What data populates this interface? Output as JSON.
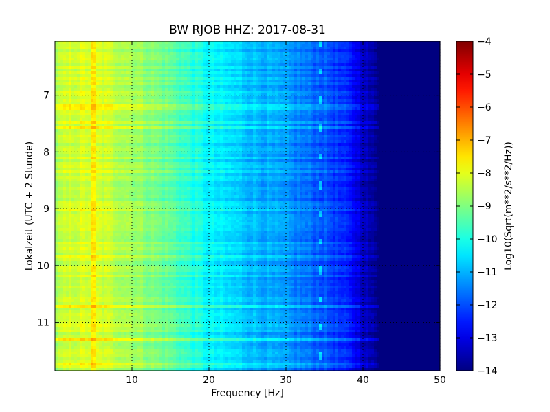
{
  "chart_data": {
    "type": "heatmap",
    "title": "BW RJOB HHZ: 2017-08-31",
    "xlabel": "Frequency [Hz]",
    "ylabel": "Lokalzeit (UTC + 2 Stunde)",
    "colorbar_label": "Log10(Sqrt(m**2/s**2/Hz))",
    "xlim": [
      0,
      50
    ],
    "ylim": [
      11.85,
      6.05
    ],
    "y_inverted": true,
    "grid": true,
    "x_ticks": [
      10,
      20,
      30,
      40,
      50
    ],
    "x_tick_labels": [
      "10",
      "20",
      "30",
      "40",
      "50"
    ],
    "y_ticks": [
      7,
      8,
      9,
      10,
      11
    ],
    "y_tick_labels": [
      "7",
      "8",
      "9",
      "10",
      "11"
    ],
    "colorbar_range": [
      -14,
      -4
    ],
    "colorbar_ticks": [
      -4,
      -5,
      -6,
      -7,
      -8,
      -9,
      -10,
      -11,
      -12,
      -13,
      -14
    ],
    "colorbar_tick_labels": [
      "−4",
      "−5",
      "−6",
      "−7",
      "−8",
      "−9",
      "−10",
      "−11",
      "−12",
      "−13",
      "−14"
    ],
    "colormap": "jet",
    "spectrum_profile": {
      "frequency_hz": [
        0,
        2,
        5,
        10,
        15,
        20,
        25,
        30,
        35,
        38,
        40,
        42,
        50
      ],
      "log10_amplitude": [
        -8.6,
        -8.2,
        -8.1,
        -8.6,
        -9.3,
        -10.3,
        -10.8,
        -11.3,
        -11.9,
        -12.5,
        -13.2,
        -14,
        -14
      ]
    },
    "features": [
      {
        "frequency_hz": 5,
        "description": "narrow line"
      },
      {
        "frequency_hz": 34.5,
        "description": "recurring spike"
      }
    ]
  }
}
